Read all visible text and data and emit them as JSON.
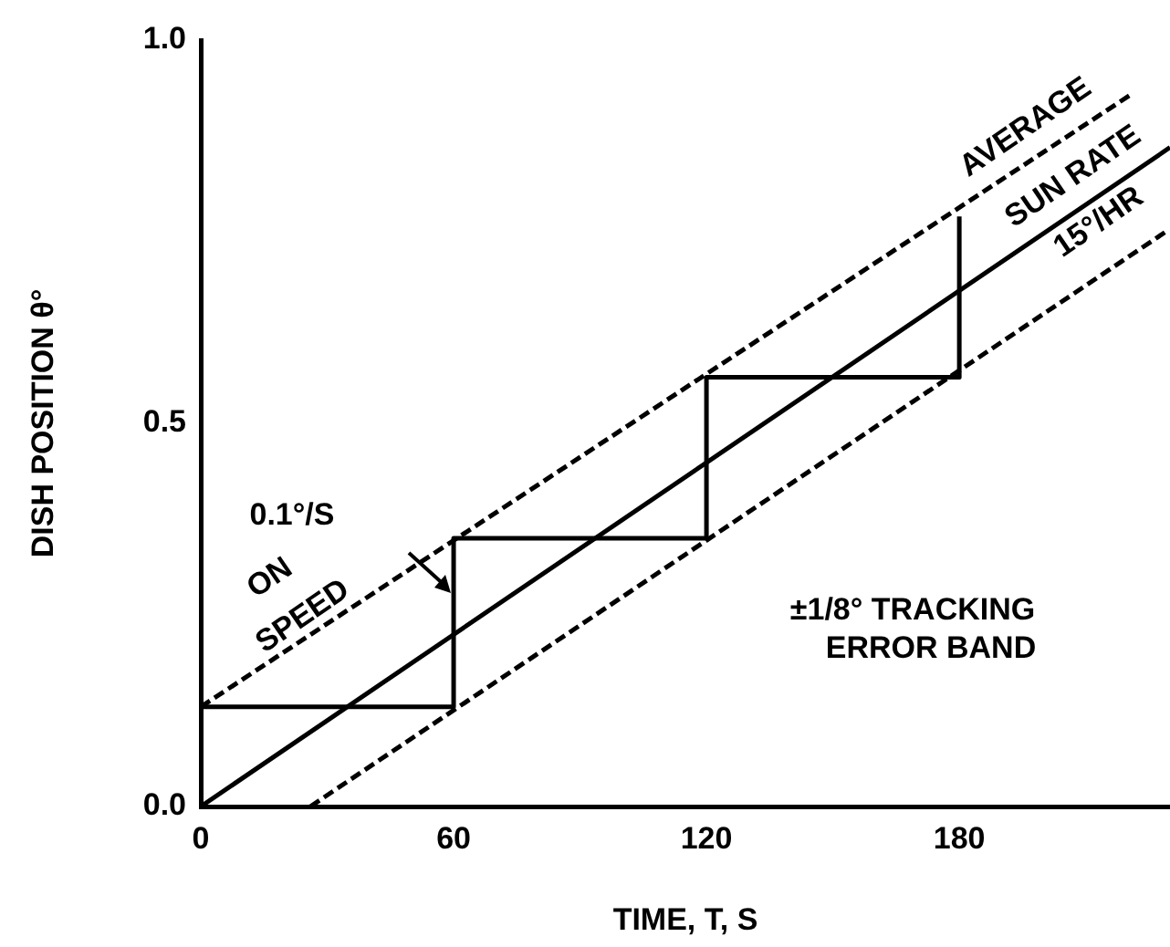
{
  "chart_data": {
    "type": "line",
    "xlabel": "TIME, T, S",
    "ylabel": "DISH POSITION θ°",
    "xlim": [
      0,
      230
    ],
    "xticks": [
      0,
      60,
      120,
      180
    ],
    "ylim": [
      0,
      1
    ],
    "yticks": [
      {
        "value": 0,
        "label": "0.0"
      },
      0.5,
      {
        "value": 1,
        "label": "1.0"
      }
    ],
    "grid": false,
    "legend": false,
    "marker": "none",
    "series": [
      {
        "color": "#000000",
        "line_style": "solid",
        "x": [
          0,
          230
        ],
        "values": [
          0,
          0.86
        ]
      },
      {
        "color": "#000000",
        "line_style": "dashed",
        "x": [
          0,
          221
        ],
        "values": [
          0.13,
          0.93
        ]
      },
      {
        "color": "#000000",
        "line_style": "dashed",
        "x": [
          26,
          229
        ],
        "values": [
          0,
          0.75
        ]
      },
      {
        "type": "step",
        "color": "#000000",
        "line_style": "solid",
        "x": [
          0,
          60,
          120,
          180
        ],
        "values": [
          0.13,
          0.35,
          0.56,
          0.77
        ]
      }
    ],
    "annotations": [
      "AVERAGE\nSUN RATE\n15°/HR",
      "0.1°/S\nON\nSPEED",
      "±1/8° TRACKING\nERROR BAND"
    ]
  }
}
